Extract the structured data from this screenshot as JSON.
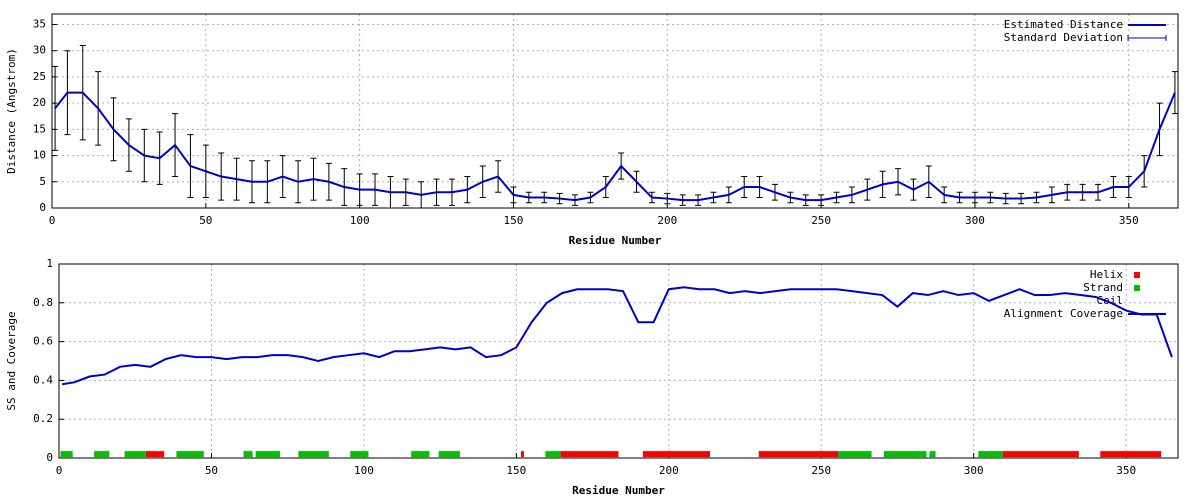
{
  "chart_data": [
    {
      "type": "line",
      "xlabel": "Residue Number",
      "ylabel": "Distance (Angstrom)",
      "xlim": [
        0,
        366
      ],
      "ylim": [
        0,
        37
      ],
      "xticks": [
        0,
        50,
        100,
        150,
        200,
        250,
        300,
        350
      ],
      "yticks": [
        0,
        5,
        10,
        15,
        20,
        25,
        30,
        35
      ],
      "grid": true,
      "legend": "top-right",
      "x": [
        1,
        5,
        10,
        15,
        20,
        25,
        30,
        35,
        40,
        45,
        50,
        55,
        60,
        65,
        70,
        75,
        80,
        85,
        90,
        95,
        100,
        105,
        110,
        115,
        120,
        125,
        130,
        135,
        140,
        145,
        150,
        155,
        160,
        165,
        170,
        175,
        180,
        185,
        190,
        195,
        200,
        205,
        210,
        215,
        220,
        225,
        230,
        235,
        240,
        245,
        250,
        255,
        260,
        265,
        270,
        275,
        280,
        285,
        290,
        295,
        300,
        305,
        310,
        315,
        320,
        325,
        330,
        335,
        340,
        345,
        350,
        355,
        360,
        365
      ],
      "series": [
        {
          "name": "Estimated Distance",
          "color": "#0000cc",
          "values": [
            19,
            22,
            22,
            19,
            15,
            12,
            10,
            9.5,
            12,
            8,
            7,
            6,
            5.5,
            5,
            5,
            6,
            5,
            5.5,
            5,
            4,
            3.5,
            3.5,
            3,
            3,
            2.5,
            3,
            3,
            3.5,
            5,
            6,
            2.5,
            2,
            2,
            1.8,
            1.5,
            2,
            4,
            8,
            5,
            2,
            1.8,
            1.5,
            1.5,
            2,
            2.5,
            4,
            4,
            3,
            2,
            1.5,
            1.5,
            2,
            2.5,
            3.5,
            4.5,
            5,
            3.5,
            5,
            2.5,
            2,
            2,
            2,
            1.8,
            1.8,
            2,
            2.5,
            3,
            3,
            3,
            4,
            4,
            7,
            15,
            22
          ]
        }
      ],
      "error_bars": {
        "name": "Standard Deviation",
        "color": "#000000",
        "values": [
          8,
          8,
          9,
          7,
          6,
          5,
          5,
          5,
          6,
          6,
          5,
          4.5,
          4,
          4,
          4,
          4,
          4,
          4,
          3.5,
          3.5,
          3,
          3,
          3,
          2.5,
          2.5,
          2.5,
          2.5,
          2.5,
          3,
          3,
          1.5,
          1,
          1,
          1,
          1,
          1,
          2,
          2.5,
          2,
          1,
          1,
          1,
          1,
          1,
          1.5,
          2,
          2,
          1.5,
          1,
          1,
          1,
          1,
          1.5,
          2,
          2.5,
          2.5,
          2,
          3,
          1.5,
          1,
          1,
          1,
          1,
          1,
          1,
          1.5,
          1.5,
          1.5,
          1.5,
          2,
          2,
          3,
          5,
          4
        ]
      }
    },
    {
      "type": "line",
      "xlabel": "Residue Number",
      "ylabel": "SS and Coverage",
      "xlim": [
        0,
        367
      ],
      "ylim": [
        0,
        1
      ],
      "xticks": [
        0,
        50,
        100,
        150,
        200,
        250,
        300,
        350
      ],
      "yticks": [
        0,
        0.2,
        0.4,
        0.6,
        0.8,
        1
      ],
      "grid": true,
      "legend": "top-right",
      "ss_level": 0.02,
      "x": [
        1,
        5,
        10,
        15,
        20,
        25,
        30,
        35,
        40,
        45,
        50,
        55,
        60,
        65,
        70,
        75,
        80,
        85,
        90,
        95,
        100,
        105,
        110,
        115,
        120,
        125,
        130,
        135,
        140,
        145,
        150,
        155,
        160,
        165,
        170,
        175,
        180,
        185,
        190,
        195,
        200,
        205,
        210,
        215,
        220,
        225,
        230,
        235,
        240,
        245,
        250,
        255,
        260,
        265,
        270,
        275,
        280,
        285,
        290,
        295,
        300,
        305,
        310,
        315,
        320,
        325,
        330,
        335,
        340,
        345,
        350,
        355,
        360,
        365
      ],
      "series": [
        {
          "name": "Helix",
          "color": "#ff0000",
          "ranges": [
            [
              29,
              34
            ],
            [
              152,
              152
            ],
            [
              165,
              183
            ],
            [
              192,
              213
            ],
            [
              230,
              255
            ],
            [
              310,
              334
            ],
            [
              342,
              361
            ]
          ]
        },
        {
          "name": "Strand",
          "color": "#00c000",
          "ranges": [
            [
              1,
              4
            ],
            [
              12,
              16
            ],
            [
              22,
              28
            ],
            [
              39,
              47
            ],
            [
              61,
              63
            ],
            [
              65,
              72
            ],
            [
              79,
              88
            ],
            [
              96,
              101
            ],
            [
              116,
              121
            ],
            [
              125,
              131
            ],
            [
              160,
              164
            ],
            [
              256,
              266
            ],
            [
              271,
              284
            ],
            [
              286,
              287
            ],
            [
              302,
              309
            ]
          ]
        },
        {
          "name": "Coil",
          "color": "#0000ff"
        },
        {
          "name": "Alignment Coverage",
          "color": "#0000cc",
          "values": [
            0.38,
            0.39,
            0.42,
            0.43,
            0.47,
            0.48,
            0.47,
            0.51,
            0.53,
            0.52,
            0.52,
            0.51,
            0.52,
            0.52,
            0.53,
            0.53,
            0.52,
            0.5,
            0.52,
            0.53,
            0.54,
            0.52,
            0.55,
            0.55,
            0.56,
            0.57,
            0.56,
            0.57,
            0.52,
            0.53,
            0.57,
            0.7,
            0.8,
            0.85,
            0.87,
            0.87,
            0.87,
            0.86,
            0.7,
            0.7,
            0.87,
            0.88,
            0.87,
            0.87,
            0.85,
            0.86,
            0.85,
            0.86,
            0.87,
            0.87,
            0.87,
            0.87,
            0.86,
            0.85,
            0.84,
            0.78,
            0.85,
            0.84,
            0.86,
            0.84,
            0.85,
            0.81,
            0.84,
            0.87,
            0.84,
            0.84,
            0.85,
            0.84,
            0.83,
            0.8,
            0.76,
            0.74,
            0.74,
            0.52
          ]
        }
      ]
    }
  ]
}
